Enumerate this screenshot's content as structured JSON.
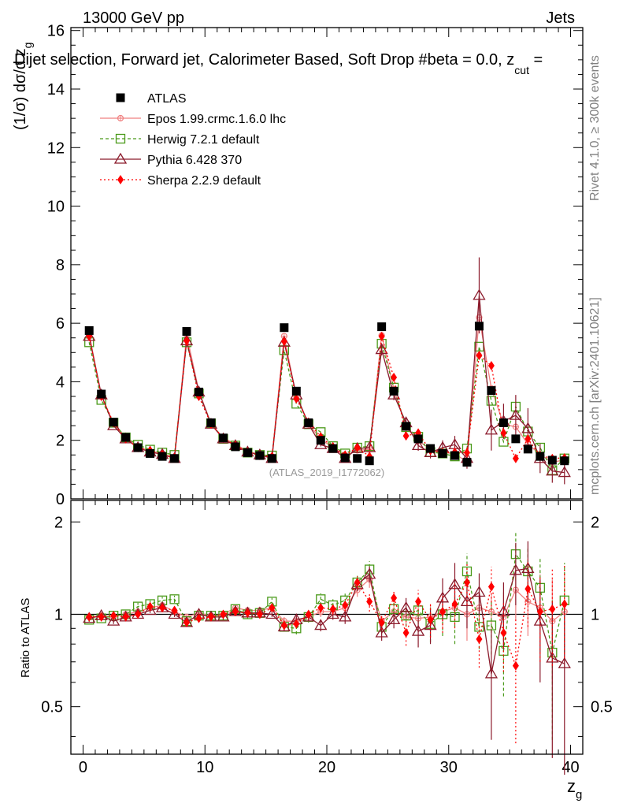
{
  "header": {
    "left": "13000 GeV pp",
    "right": "Jets"
  },
  "title": "Dijet selection, Forward jet, Calorimeter Based, Soft Drop #beta = 0.0, z",
  "title_sub": "cut",
  "title_end": " =",
  "side_text_top": "Rivet 4.1.0, ≥ 300k events",
  "side_text_bottom": "mcplots.cern.ch [arXiv:2401.10621]",
  "watermark": "(ATLAS_2019_I1772062)",
  "colors": {
    "data": "#000000",
    "epos": "#f08080",
    "herwig": "#4a9a1a",
    "pythia": "#8b1a2b",
    "sherpa": "#ff0000"
  },
  "chart_data": {
    "type": "scatter",
    "xlabel": "z",
    "xlabel_sub": "g",
    "ylabel": "(1/σ) dσ/d z",
    "ylabel_sub": "g",
    "ratio_ylabel": "Ratio to ATLAS",
    "xlim": [
      -1,
      41
    ],
    "ylim": [
      0,
      16.1
    ],
    "ratio_ylim": [
      0.35,
      2.35
    ],
    "x_ticks": [
      "0",
      "10",
      "20",
      "30",
      "40"
    ],
    "y_ticks": [
      "0",
      "2",
      "4",
      "6",
      "8",
      "10",
      "12",
      "14",
      "16"
    ],
    "ratio_ticks": [
      "0.5",
      "1",
      "2"
    ],
    "x": [
      0.5,
      1.5,
      2.5,
      3.5,
      4.5,
      5.5,
      6.5,
      7.5,
      8.5,
      9.5,
      10.5,
      11.5,
      12.5,
      13.5,
      14.5,
      15.5,
      16.5,
      17.5,
      18.5,
      19.5,
      20.5,
      21.5,
      22.5,
      23.5,
      24.5,
      25.5,
      26.5,
      27.5,
      28.5,
      29.5,
      30.5,
      31.5,
      32.5,
      33.5,
      34.5,
      35.5,
      36.5,
      37.5,
      38.5,
      39.5
    ],
    "series": [
      {
        "name": "ATLAS",
        "key": "data",
        "values": [
          5.75,
          3.58,
          2.62,
          2.1,
          1.75,
          1.55,
          1.45,
          1.38,
          5.72,
          3.65,
          2.6,
          2.08,
          1.78,
          1.58,
          1.48,
          1.38,
          5.85,
          3.68,
          2.6,
          2.0,
          1.72,
          1.4,
          1.38,
          1.3,
          5.88,
          3.68,
          2.48,
          2.05,
          1.72,
          1.55,
          1.48,
          1.25,
          5.9,
          3.7,
          2.6,
          2.05,
          1.7,
          1.45,
          1.32,
          1.3
        ]
      },
      {
        "name": "Epos 1.99.crmc.1.6.0 lhc",
        "key": "epos",
        "ratio": [
          0.98,
          0.99,
          0.98,
          1.0,
          1.02,
          1.05,
          1.07,
          1.02,
          0.98,
          1.01,
          0.99,
          1.0,
          1.05,
          1.03,
          1.03,
          1.05,
          0.95,
          0.95,
          0.98,
          1.02,
          1.02,
          1.05,
          1.2,
          1.3,
          0.95,
          1.02,
          0.98,
          0.97,
          0.98,
          1.02,
          1.05,
          1.0,
          1.05,
          1.02,
          0.98,
          1.2,
          1.1,
          1.05,
          0.95,
          1.02
        ],
        "ratio_err": [
          0.02,
          0.02,
          0.02,
          0.02,
          0.02,
          0.02,
          0.02,
          0.02,
          0.02,
          0.02,
          0.02,
          0.02,
          0.02,
          0.02,
          0.02,
          0.02,
          0.03,
          0.03,
          0.03,
          0.04,
          0.04,
          0.05,
          0.06,
          0.08,
          0.04,
          0.05,
          0.06,
          0.08,
          0.1,
          0.12,
          0.14,
          0.18,
          0.12,
          0.15,
          0.2,
          0.25,
          0.25,
          0.3,
          0.35,
          0.35
        ]
      },
      {
        "name": "Herwig 7.2.1 default",
        "key": "herwig",
        "values": [
          5.35,
          3.38,
          2.6,
          2.1,
          1.85,
          1.68,
          1.58,
          1.5,
          5.35,
          3.6,
          2.58,
          2.05,
          1.82,
          1.58,
          1.5,
          1.48,
          5.08,
          3.25,
          2.55,
          2.28,
          1.8,
          1.55,
          1.75,
          1.8,
          5.3,
          3.8,
          2.45,
          2.12,
          1.6,
          1.55,
          1.45,
          1.72,
          5.2,
          3.35,
          1.95,
          3.15,
          2.3,
          1.75,
          0.98,
          1.38
        ],
        "ratio": [
          0.96,
          0.97,
          0.99,
          1.0,
          1.06,
          1.08,
          1.11,
          1.12,
          0.95,
          0.99,
          0.99,
          0.99,
          1.04,
          1.0,
          1.01,
          1.1,
          0.91,
          0.9,
          0.98,
          1.12,
          1.07,
          1.11,
          1.27,
          1.4,
          0.91,
          1.04,
          0.99,
          1.03,
          0.93,
          1.0,
          0.98,
          1.38,
          0.91,
          0.92,
          0.76,
          1.57,
          1.38,
          1.22,
          0.75,
          1.11
        ],
        "ratio_err": [
          0.02,
          0.02,
          0.02,
          0.02,
          0.03,
          0.03,
          0.03,
          0.03,
          0.02,
          0.02,
          0.03,
          0.03,
          0.03,
          0.03,
          0.03,
          0.03,
          0.03,
          0.04,
          0.04,
          0.05,
          0.05,
          0.06,
          0.07,
          0.09,
          0.05,
          0.06,
          0.08,
          0.1,
          0.12,
          0.15,
          0.18,
          0.2,
          0.14,
          0.18,
          0.22,
          0.28,
          0.28,
          0.32,
          0.36,
          0.36
        ]
      },
      {
        "name": "Pythia 6.428 370",
        "key": "pythia",
        "values": [
          5.55,
          3.55,
          2.5,
          2.05,
          1.75,
          1.6,
          1.52,
          1.38,
          5.4,
          3.65,
          2.55,
          2.05,
          1.82,
          1.6,
          1.5,
          1.38,
          5.35,
          3.55,
          2.55,
          1.85,
          1.72,
          1.38,
          1.72,
          1.75,
          5.1,
          3.55,
          2.6,
          1.82,
          1.58,
          1.75,
          1.85,
          1.38,
          6.95,
          2.35,
          2.65,
          2.85,
          2.4,
          1.38,
          0.95,
          0.9
        ],
        "ratio": [
          0.97,
          0.99,
          0.95,
          0.98,
          1.0,
          1.03,
          1.05,
          1.0,
          0.94,
          1.0,
          0.98,
          0.98,
          1.02,
          1.01,
          1.01,
          1.0,
          0.91,
          0.96,
          0.98,
          0.92,
          1.0,
          0.98,
          1.25,
          1.35,
          0.87,
          0.96,
          1.05,
          0.88,
          0.92,
          1.13,
          1.25,
          1.1,
          1.18,
          0.64,
          1.02,
          1.39,
          1.41,
          0.95,
          0.72,
          0.69
        ],
        "ratio_err": [
          0.02,
          0.02,
          0.02,
          0.02,
          0.02,
          0.02,
          0.02,
          0.02,
          0.02,
          0.02,
          0.02,
          0.02,
          0.02,
          0.02,
          0.02,
          0.02,
          0.03,
          0.03,
          0.03,
          0.04,
          0.04,
          0.05,
          0.06,
          0.08,
          0.05,
          0.06,
          0.08,
          0.1,
          0.12,
          0.18,
          0.22,
          0.2,
          0.18,
          0.25,
          0.25,
          0.32,
          0.32,
          0.35,
          0.38,
          0.4
        ],
        "values_err": [
          0.1,
          0.07,
          0.05,
          0.04,
          0.04,
          0.04,
          0.04,
          0.04,
          0.1,
          0.07,
          0.05,
          0.04,
          0.04,
          0.04,
          0.04,
          0.04,
          0.12,
          0.08,
          0.06,
          0.06,
          0.05,
          0.06,
          0.08,
          0.1,
          0.2,
          0.18,
          0.18,
          0.18,
          0.2,
          0.25,
          0.3,
          0.35,
          1.3,
          0.7,
          0.6,
          0.7,
          0.7,
          0.5,
          0.4,
          0.4
        ]
      },
      {
        "name": "Sherpa 2.2.9 default",
        "key": "sherpa",
        "values": [
          5.55,
          3.5,
          2.6,
          2.05,
          1.75,
          1.65,
          1.52,
          1.42,
          5.4,
          3.5,
          2.55,
          2.08,
          1.82,
          1.6,
          1.48,
          1.45,
          5.38,
          3.42,
          2.62,
          2.12,
          1.78,
          1.5,
          1.75,
          1.45,
          5.55,
          4.15,
          2.15,
          2.25,
          1.65,
          1.58,
          1.6,
          1.58,
          4.9,
          4.55,
          2.25,
          1.38,
          2.05,
          1.48,
          1.38,
          1.4
        ],
        "ratio": [
          0.98,
          0.98,
          0.99,
          0.98,
          1.0,
          1.06,
          1.05,
          1.03,
          0.94,
          0.97,
          0.98,
          1.0,
          1.02,
          1.01,
          1.0,
          1.05,
          0.92,
          0.93,
          1.0,
          1.05,
          1.04,
          1.07,
          1.27,
          1.1,
          0.94,
          1.13,
          0.87,
          1.1,
          0.96,
          1.02,
          1.08,
          1.27,
          0.83,
          1.23,
          0.87,
          0.68,
          1.21,
          1.02,
          1.04,
          1.08
        ],
        "ratio_err": [
          0.02,
          0.02,
          0.02,
          0.02,
          0.02,
          0.02,
          0.02,
          0.02,
          0.02,
          0.02,
          0.02,
          0.02,
          0.02,
          0.02,
          0.02,
          0.02,
          0.03,
          0.03,
          0.03,
          0.04,
          0.04,
          0.05,
          0.06,
          0.08,
          0.05,
          0.06,
          0.08,
          0.1,
          0.12,
          0.15,
          0.18,
          0.2,
          0.16,
          0.2,
          0.22,
          0.3,
          0.3,
          0.32,
          0.36,
          0.36
        ]
      }
    ]
  }
}
